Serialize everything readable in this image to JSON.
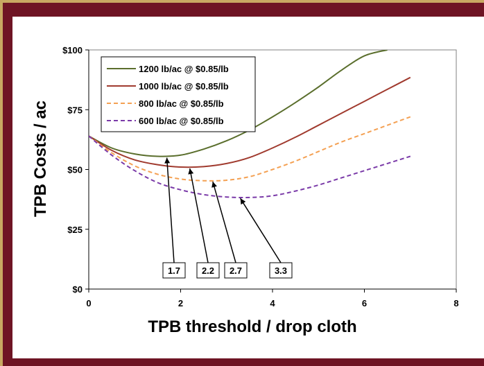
{
  "chart_data": {
    "type": "line",
    "xlabel": "TPB threshold / drop cloth",
    "ylabel": "TPB Costs / ac",
    "xlim": [
      0,
      8
    ],
    "ylim": [
      0,
      100
    ],
    "x_ticks": [
      "0",
      "2",
      "4",
      "6",
      "8"
    ],
    "y_ticks": [
      "$0",
      "$25",
      "$50",
      "$75",
      "$100"
    ],
    "grid": false,
    "legend_position": "top-left",
    "series": [
      {
        "name": "1200 lb/ac @ $0.85/lb",
        "color": "#5a6e2c",
        "dash": "solid",
        "x": [
          0,
          0.5,
          1,
          1.5,
          2,
          2.5,
          3,
          3.5,
          4,
          4.5,
          5,
          5.5,
          6,
          6.5
        ],
        "y": [
          64,
          59,
          56.5,
          55.5,
          56,
          58.5,
          62,
          66.5,
          72,
          78,
          84.5,
          91.5,
          97.5,
          100
        ]
      },
      {
        "name": "1000 lb/ac @ $0.85/lb",
        "color": "#a03a2e",
        "dash": "solid",
        "x": [
          0,
          0.5,
          1,
          1.5,
          2,
          2.5,
          3,
          3.5,
          4,
          4.5,
          5,
          5.5,
          6,
          6.5,
          7
        ],
        "y": [
          64,
          58,
          54,
          52,
          51,
          51.2,
          52.5,
          55,
          59,
          63.5,
          68.5,
          73.5,
          78.5,
          83.5,
          88.5
        ]
      },
      {
        "name": "800 lb/ac @ $0.85/lb",
        "color": "#f4a052",
        "dash": "dashed",
        "x": [
          0,
          0.5,
          1,
          1.5,
          2,
          2.5,
          3,
          3.5,
          4,
          4.5,
          5,
          5.5,
          6,
          6.5,
          7
        ],
        "y": [
          64,
          57,
          51.5,
          48,
          46,
          45.3,
          45.5,
          47,
          50,
          53.5,
          57.5,
          61.5,
          65,
          68.5,
          72
        ]
      },
      {
        "name": "600 lb/ac @ $0.85/lb",
        "color": "#7a3aa8",
        "dash": "dashed",
        "x": [
          0,
          0.5,
          1,
          1.5,
          2,
          2.5,
          3,
          3.5,
          4,
          4.5,
          5,
          5.5,
          6,
          6.5,
          7
        ],
        "y": [
          64,
          56,
          49.5,
          44.5,
          41.5,
          39.5,
          38.5,
          38.3,
          39,
          41,
          43.5,
          46.5,
          49.5,
          52.5,
          55.5
        ]
      }
    ],
    "annotations": [
      {
        "label": "1.7",
        "x": 1.7,
        "y": 55.5
      },
      {
        "label": "2.2",
        "x": 2.2,
        "y": 51
      },
      {
        "label": "2.7",
        "x": 2.7,
        "y": 45.5
      },
      {
        "label": "3.3",
        "x": 3.3,
        "y": 38.5
      }
    ]
  }
}
